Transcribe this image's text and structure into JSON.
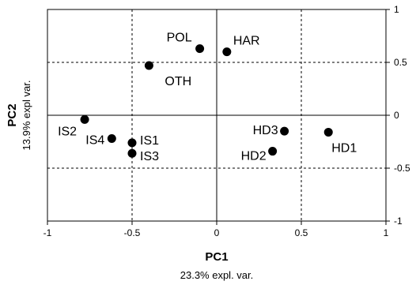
{
  "chart_data": {
    "type": "scatter",
    "title": "",
    "xlabel": "PC1",
    "xlabel_sub": "23.3% expl. var.",
    "ylabel": "PC2",
    "ylabel_sub": "13.9% expl var.",
    "xlim": [
      -1,
      1
    ],
    "ylim": [
      -1,
      1
    ],
    "x_ticks": [
      -1,
      -0.5,
      0,
      0.5,
      1
    ],
    "y_ticks": [
      -1,
      -0.5,
      0,
      0.5,
      1
    ],
    "x_tick_labels": [
      "-1",
      "-0.5",
      "0",
      "0.5",
      "1"
    ],
    "y_tick_labels": [
      "-1",
      "-0.5",
      "0",
      "0.5",
      "1"
    ],
    "dashed_grid_x": [
      -0.5,
      0.5
    ],
    "dashed_grid_y": [
      -0.5,
      0.5
    ],
    "solid_zero_lines": true,
    "y_axis_side": "right",
    "points": [
      {
        "label": "POL",
        "x": -0.1,
        "y": 0.63
      },
      {
        "label": "HAR",
        "x": 0.06,
        "y": 0.6
      },
      {
        "label": "OTH",
        "x": -0.4,
        "y": 0.47
      },
      {
        "label": "IS2",
        "x": -0.78,
        "y": -0.04
      },
      {
        "label": "IS4",
        "x": -0.62,
        "y": -0.22
      },
      {
        "label": "IS1",
        "x": -0.5,
        "y": -0.26
      },
      {
        "label": "IS3",
        "x": -0.5,
        "y": -0.36
      },
      {
        "label": "HD3",
        "x": 0.4,
        "y": -0.15
      },
      {
        "label": "HD2",
        "x": 0.33,
        "y": -0.34
      },
      {
        "label": "HD1",
        "x": 0.66,
        "y": -0.16
      }
    ]
  }
}
